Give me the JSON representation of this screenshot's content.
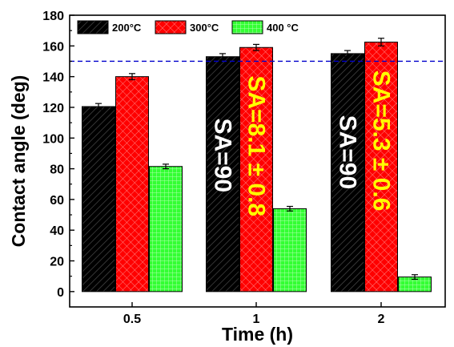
{
  "chart_data": {
    "type": "bar",
    "xlabel": "Time (h)",
    "ylabel": "Contact angle (deg)",
    "ylim": [
      -10,
      180
    ],
    "yticks": [
      0,
      20,
      40,
      60,
      80,
      100,
      120,
      140,
      160,
      180
    ],
    "categories": [
      "0.5",
      "1",
      "2"
    ],
    "series": [
      {
        "name": "200°C",
        "color": "#000000",
        "pattern": "diagonal-hatch",
        "values": [
          120.5,
          153,
          155
        ],
        "errors": [
          2,
          2,
          2
        ]
      },
      {
        "name": "300°C",
        "color": "#ff0000",
        "pattern": "cross-hatch",
        "values": [
          140,
          159,
          162.5
        ],
        "errors": [
          2,
          2,
          2.5
        ]
      },
      {
        "name": "400 °C",
        "color": "#33ff33",
        "pattern": "grid",
        "values": [
          81.5,
          54,
          9.5
        ],
        "errors": [
          1.5,
          1.5,
          1.5
        ]
      }
    ],
    "reference_line": {
      "y": 150,
      "color": "#0000cc",
      "style": "dashed"
    },
    "annotations": [
      {
        "text": "SA=90",
        "category": "1",
        "series": "200°C",
        "color": "#ffffff"
      },
      {
        "text": "SA=8.1 ± 0.8",
        "category": "1",
        "series": "300°C",
        "color": "#ffff00"
      },
      {
        "text": "SA=90",
        "category": "2",
        "series": "200°C",
        "color": "#ffffff"
      },
      {
        "text": "SA=5.3 ± 0.6",
        "category": "2",
        "series": "300°C",
        "color": "#ffff00"
      }
    ],
    "legend_position": "top-left",
    "grid": false
  }
}
